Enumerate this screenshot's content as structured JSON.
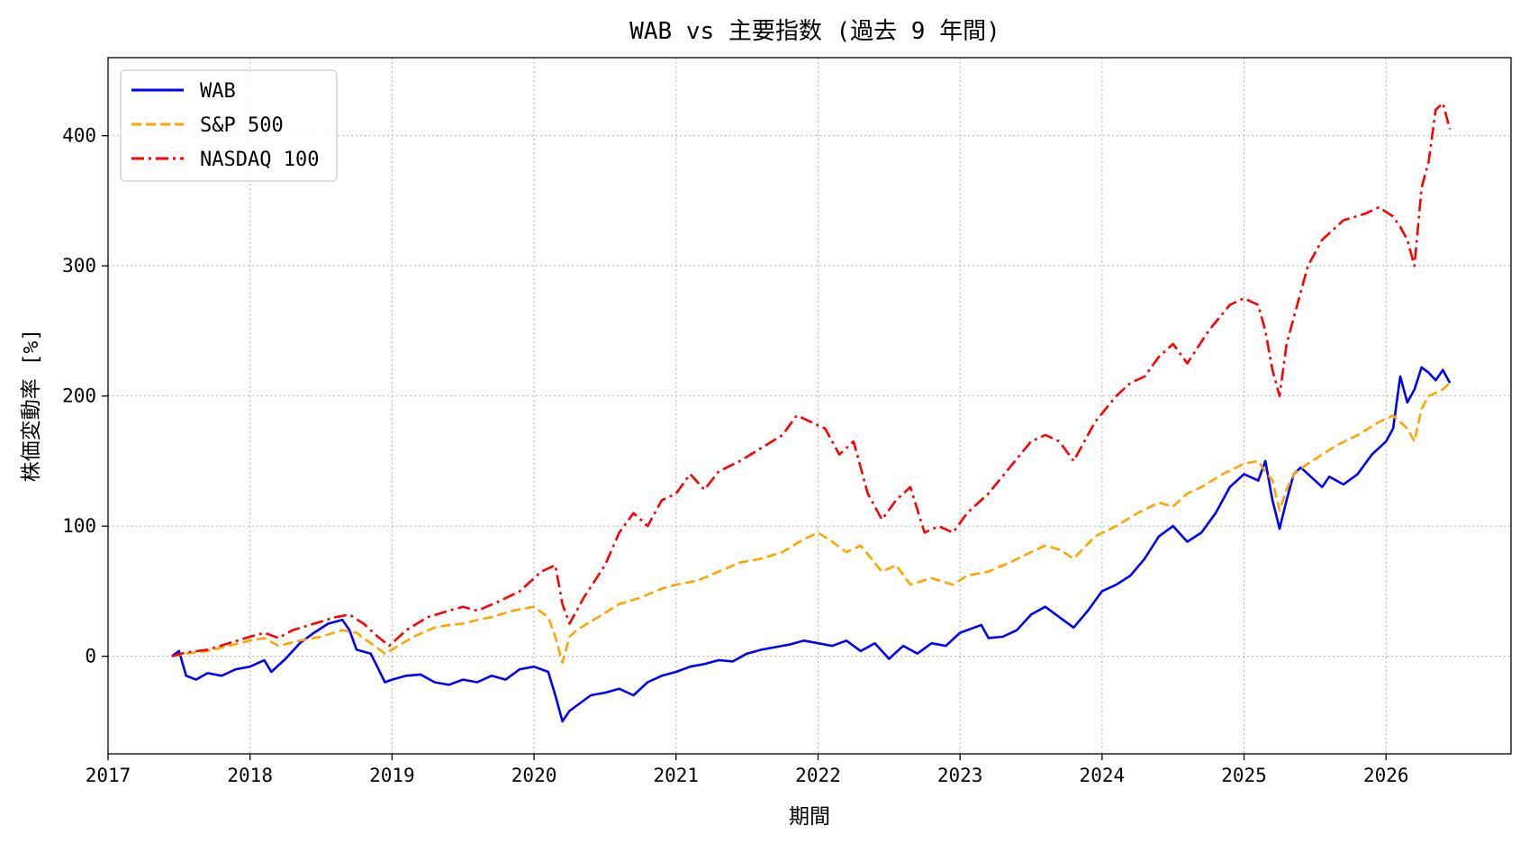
{
  "chart_data": {
    "type": "line",
    "title": "WAB vs 主要指数 (過去 9 年間)",
    "xlabel": "期間",
    "ylabel": "株価変動率 [%]",
    "xlim": [
      2017.0,
      2026.88
    ],
    "ylim": [
      -75,
      460
    ],
    "x_ticks": [
      2017,
      2018,
      2019,
      2020,
      2021,
      2022,
      2023,
      2024,
      2025,
      2026
    ],
    "x_tick_labels": [
      "2017",
      "2018",
      "2019",
      "2020",
      "2021",
      "2022",
      "2023",
      "2024",
      "2025",
      "2026"
    ],
    "y_ticks": [
      0,
      100,
      200,
      300,
      400
    ],
    "y_tick_labels": [
      "0",
      "100",
      "200",
      "300",
      "400"
    ],
    "grid": true,
    "legend_position": "top-left",
    "series": [
      {
        "name": "WAB",
        "color": "#0000ff",
        "dash": "solid",
        "x": [
          2017.45,
          2017.5,
          2017.55,
          2017.62,
          2017.7,
          2017.8,
          2017.9,
          2018.0,
          2018.1,
          2018.15,
          2018.25,
          2018.35,
          2018.45,
          2018.55,
          2018.65,
          2018.7,
          2018.75,
          2018.85,
          2018.95,
          2019.0,
          2019.1,
          2019.2,
          2019.3,
          2019.4,
          2019.5,
          2019.6,
          2019.7,
          2019.8,
          2019.9,
          2020.0,
          2020.1,
          2020.15,
          2020.2,
          2020.25,
          2020.3,
          2020.4,
          2020.5,
          2020.6,
          2020.7,
          2020.8,
          2020.9,
          2021.0,
          2021.1,
          2021.2,
          2021.3,
          2021.4,
          2021.5,
          2021.6,
          2021.7,
          2021.8,
          2021.9,
          2022.0,
          2022.1,
          2022.2,
          2022.3,
          2022.4,
          2022.5,
          2022.6,
          2022.7,
          2022.8,
          2022.9,
          2023.0,
          2023.1,
          2023.15,
          2023.2,
          2023.3,
          2023.4,
          2023.5,
          2023.6,
          2023.7,
          2023.8,
          2023.9,
          2024.0,
          2024.1,
          2024.2,
          2024.3,
          2024.4,
          2024.5,
          2024.6,
          2024.7,
          2024.8,
          2024.9,
          2025.0,
          2025.1,
          2025.15,
          2025.2,
          2025.25,
          2025.3,
          2025.35,
          2025.4,
          2025.5,
          2025.55,
          2025.6,
          2025.7,
          2025.8,
          2025.9,
          2026.0,
          2026.05,
          2026.1,
          2026.15,
          2026.2,
          2026.25,
          2026.3,
          2026.35,
          2026.4,
          2026.45
        ],
        "y": [
          0,
          4,
          -15,
          -18,
          -13,
          -15,
          -10,
          -8,
          -3,
          -12,
          -2,
          10,
          18,
          25,
          28,
          20,
          5,
          2,
          -20,
          -18,
          -15,
          -14,
          -20,
          -22,
          -18,
          -20,
          -15,
          -18,
          -10,
          -8,
          -12,
          -30,
          -50,
          -42,
          -38,
          -30,
          -28,
          -25,
          -30,
          -20,
          -15,
          -12,
          -8,
          -6,
          -3,
          -4,
          2,
          5,
          7,
          9,
          12,
          10,
          8,
          12,
          4,
          10,
          -2,
          8,
          2,
          10,
          8,
          18,
          22,
          24,
          14,
          15,
          20,
          32,
          38,
          30,
          22,
          35,
          50,
          55,
          62,
          75,
          92,
          100,
          88,
          95,
          110,
          130,
          140,
          135,
          150,
          120,
          98,
          120,
          140,
          145,
          135,
          130,
          138,
          132,
          140,
          155,
          165,
          175,
          215,
          195,
          205,
          222,
          218,
          212,
          220,
          210
        ]
      },
      {
        "name": "S&P 500",
        "color": "#ffa500",
        "dash": "dashed",
        "x": [
          2017.45,
          2017.55,
          2017.7,
          2017.85,
          2018.0,
          2018.1,
          2018.2,
          2018.35,
          2018.5,
          2018.65,
          2018.75,
          2018.85,
          2018.95,
          2019.0,
          2019.15,
          2019.3,
          2019.4,
          2019.5,
          2019.6,
          2019.7,
          2019.85,
          2020.0,
          2020.1,
          2020.15,
          2020.2,
          2020.25,
          2020.3,
          2020.45,
          2020.6,
          2020.75,
          2020.9,
          2021.0,
          2021.15,
          2021.3,
          2021.45,
          2021.6,
          2021.75,
          2021.9,
          2022.0,
          2022.1,
          2022.2,
          2022.3,
          2022.45,
          2022.55,
          2022.65,
          2022.8,
          2022.95,
          2023.05,
          2023.2,
          2023.35,
          2023.5,
          2023.6,
          2023.7,
          2023.8,
          2023.95,
          2024.1,
          2024.25,
          2024.4,
          2024.5,
          2024.6,
          2024.7,
          2024.85,
          2025.0,
          2025.1,
          2025.15,
          2025.2,
          2025.25,
          2025.3,
          2025.35,
          2025.45,
          2025.55,
          2025.65,
          2025.8,
          2025.95,
          2026.05,
          2026.1,
          2026.15,
          2026.2,
          2026.25,
          2026.3,
          2026.4,
          2026.45
        ],
        "y": [
          0,
          2,
          4,
          8,
          12,
          14,
          8,
          12,
          15,
          20,
          18,
          10,
          2,
          5,
          15,
          22,
          24,
          25,
          28,
          30,
          35,
          38,
          30,
          15,
          -5,
          15,
          20,
          30,
          40,
          45,
          52,
          55,
          58,
          65,
          72,
          75,
          80,
          90,
          95,
          88,
          80,
          85,
          65,
          70,
          55,
          60,
          55,
          62,
          65,
          72,
          80,
          85,
          82,
          75,
          92,
          100,
          110,
          118,
          115,
          125,
          130,
          140,
          148,
          150,
          142,
          135,
          112,
          128,
          140,
          148,
          155,
          162,
          170,
          180,
          185,
          180,
          175,
          165,
          190,
          200,
          205,
          210
        ]
      },
      {
        "name": "NASDAQ 100",
        "color": "#ff0000",
        "dash": "dashdot",
        "x": [
          2017.45,
          2017.55,
          2017.7,
          2017.85,
          2018.0,
          2018.1,
          2018.2,
          2018.3,
          2018.45,
          2018.6,
          2018.7,
          2018.8,
          2018.9,
          2018.98,
          2019.1,
          2019.25,
          2019.4,
          2019.5,
          2019.6,
          2019.75,
          2019.9,
          2020.05,
          2020.15,
          2020.2,
          2020.25,
          2020.35,
          2020.5,
          2020.6,
          2020.7,
          2020.8,
          2020.9,
          2021.0,
          2021.1,
          2021.2,
          2021.3,
          2021.45,
          2021.6,
          2021.75,
          2021.85,
          2021.95,
          2022.05,
          2022.15,
          2022.25,
          2022.35,
          2022.45,
          2022.55,
          2022.65,
          2022.75,
          2022.85,
          2022.95,
          2023.05,
          2023.2,
          2023.35,
          2023.5,
          2023.6,
          2023.7,
          2023.8,
          2023.95,
          2024.1,
          2024.2,
          2024.3,
          2024.4,
          2024.5,
          2024.6,
          2024.75,
          2024.9,
          2025.0,
          2025.1,
          2025.15,
          2025.2,
          2025.25,
          2025.3,
          2025.35,
          2025.45,
          2025.55,
          2025.7,
          2025.85,
          2025.95,
          2026.05,
          2026.1,
          2026.15,
          2026.2,
          2026.25,
          2026.3,
          2026.35,
          2026.4,
          2026.45
        ],
        "y": [
          0,
          3,
          5,
          10,
          15,
          18,
          14,
          20,
          25,
          30,
          32,
          25,
          15,
          8,
          20,
          30,
          35,
          38,
          35,
          42,
          50,
          65,
          70,
          40,
          25,
          45,
          70,
          95,
          110,
          100,
          120,
          125,
          140,
          128,
          142,
          150,
          160,
          170,
          185,
          180,
          175,
          155,
          165,
          125,
          105,
          120,
          130,
          95,
          100,
          95,
          110,
          125,
          145,
          165,
          170,
          165,
          150,
          180,
          200,
          210,
          215,
          230,
          240,
          225,
          250,
          270,
          275,
          270,
          250,
          220,
          200,
          240,
          260,
          300,
          320,
          335,
          340,
          345,
          338,
          330,
          320,
          300,
          360,
          380,
          420,
          425,
          405
        ]
      }
    ]
  }
}
